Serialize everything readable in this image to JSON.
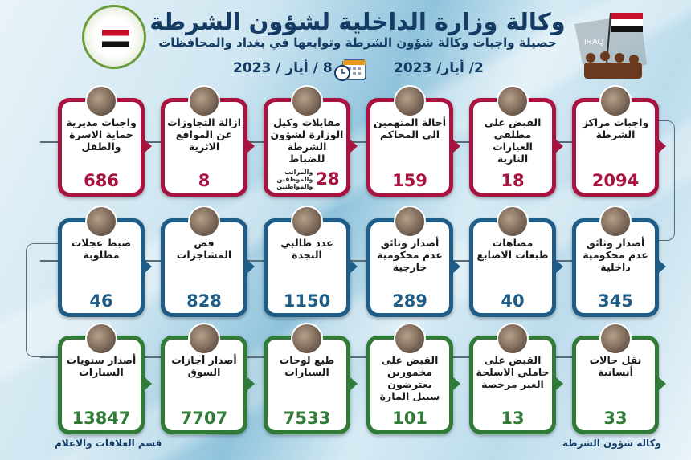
{
  "header": {
    "title": "وكالة وزارة الداخلية لشؤون الشرطة",
    "subtitle": "حصيلة واجبات وكالة شؤون الشرطة وتوابعها في بغداد والمحافظات",
    "date_from": "2/ أيار/ 2023",
    "date_to": "8 / أيار / 2023",
    "calendar_icon": "calendar-clock-icon",
    "right_logo_text": "IRAQ"
  },
  "colors": {
    "row1": "#a8133f",
    "row2": "#1d5d87",
    "row3": "#2f7b37",
    "title": "#143b63"
  },
  "rows": [
    {
      "cards": [
        {
          "label": "واجبات مراكز الشرطة",
          "value": "2094"
        },
        {
          "label": "القبض على مطلقي العيارات النارية",
          "value": "18"
        },
        {
          "label": "أحالة المتهمين الى المحاكم",
          "value": "159"
        },
        {
          "label": "مقابلات وكيل الوزارة لشؤون الشرطة للضباط",
          "value": "28",
          "note": "والمراتب والموظفين والمواطنين"
        },
        {
          "label": "ازالة التجاوزات عن المواقع الاثرية",
          "value": "8"
        },
        {
          "label": "واجبات مديرية حماية الاسرة والطفل",
          "value": "686"
        }
      ]
    },
    {
      "cards": [
        {
          "label": "أصدار وثائق عدم محكومية داخلية",
          "value": "345"
        },
        {
          "label": "مضاهات طبعات الاصابع",
          "value": "40"
        },
        {
          "label": "أصدار وثائق عدم محكومية خارجية",
          "value": "289"
        },
        {
          "label": "عدد طالبي النجدة",
          "value": "1150"
        },
        {
          "label": "فض المشاجرات",
          "value": "828"
        },
        {
          "label": "ضبط عجلات مطلوبة",
          "value": "46"
        }
      ]
    },
    {
      "cards": [
        {
          "label": "نقل حالات أنسانية",
          "value": "33"
        },
        {
          "label": "القبض على حاملي الاسلحة الغير مرخصة",
          "value": "13"
        },
        {
          "label": "القبض على مخمورين يعترضون سبيل المارة",
          "value": "101"
        },
        {
          "label": "طبع لوحات السيارات",
          "value": "7533"
        },
        {
          "label": "أصدار أجازات السوق",
          "value": "7707"
        },
        {
          "label": "أصدار سنويات السيارات",
          "value": "13847"
        }
      ]
    }
  ],
  "footer": {
    "left": "قسم العلاقات والاعلام",
    "right": "وكالة شؤون الشرطة"
  }
}
